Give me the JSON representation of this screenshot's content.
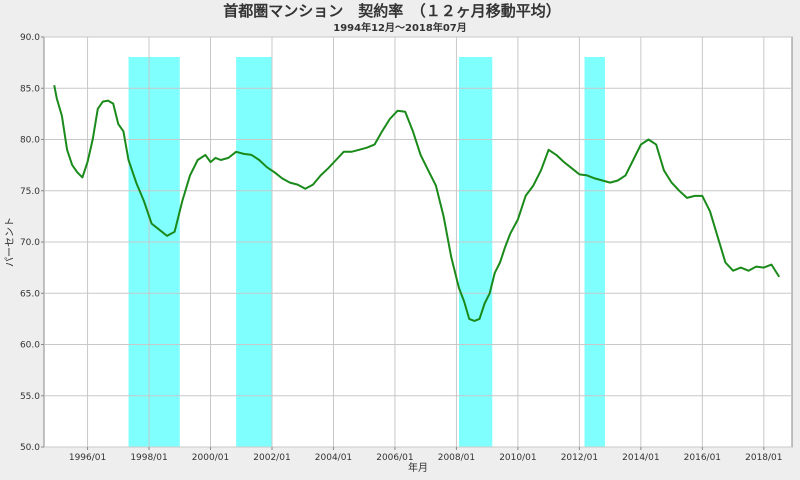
{
  "chart_data": {
    "type": "line",
    "title": "首都圏マンション　契約率　（１２ヶ月移動平均）",
    "subtitle": "1994年12月～2018年07月",
    "xlabel": "年月",
    "ylabel": "パーセント",
    "ylim": [
      50,
      90
    ],
    "xlim": [
      "1994/08",
      "2018/12"
    ],
    "y_ticks": [
      "50.0",
      "55.0",
      "60.0",
      "65.0",
      "70.0",
      "75.0",
      "80.0",
      "85.0",
      "90.0"
    ],
    "x_ticks": [
      "1996/01",
      "1998/01",
      "2000/01",
      "2002/01",
      "2004/01",
      "2006/01",
      "2008/01",
      "2010/01",
      "2012/01",
      "2014/01",
      "2016/01",
      "2018/01"
    ],
    "grid": true,
    "line_color": "#1a8a1a",
    "band_color": "#80ffff",
    "shaded_periods": [
      [
        "1997/05",
        "1999/01"
      ],
      [
        "2000/11",
        "2002/01"
      ],
      [
        "2008/02",
        "2009/03"
      ],
      [
        "2012/03",
        "2012/11"
      ]
    ],
    "series": [
      {
        "x": [
          "1994/12",
          "1995/01",
          "1995/03",
          "1995/05",
          "1995/07",
          "1995/09",
          "1995/11",
          "1996/01",
          "1996/03",
          "1996/05",
          "1996/07",
          "1996/09",
          "1996/11",
          "1997/01",
          "1997/03",
          "1997/05",
          "1997/08",
          "1997/11",
          "1998/02",
          "1998/05",
          "1998/08",
          "1998/11",
          "1999/02",
          "1999/05",
          "1999/08",
          "1999/11",
          "2000/01",
          "2000/03",
          "2000/05",
          "2000/08",
          "2000/11",
          "2001/02",
          "2001/05",
          "2001/08",
          "2001/11",
          "2002/02",
          "2002/05",
          "2002/08",
          "2002/11",
          "2003/02",
          "2003/05",
          "2003/08",
          "2003/11",
          "2004/02",
          "2004/05",
          "2004/08",
          "2004/11",
          "2005/02",
          "2005/05",
          "2005/08",
          "2005/11",
          "2006/02",
          "2006/05",
          "2006/08",
          "2006/11",
          "2007/02",
          "2007/05",
          "2007/08",
          "2007/11",
          "2008/02",
          "2008/04",
          "2008/06",
          "2008/08",
          "2008/10",
          "2008/12",
          "2009/02",
          "2009/04",
          "2009/06",
          "2009/08",
          "2009/10",
          "2010/01",
          "2010/04",
          "2010/07",
          "2010/10",
          "2011/01",
          "2011/04",
          "2011/07",
          "2011/10",
          "2012/01",
          "2012/04",
          "2012/07",
          "2012/10",
          "2013/01",
          "2013/04",
          "2013/07",
          "2013/10",
          "2014/01",
          "2014/04",
          "2014/07",
          "2014/10",
          "2015/01",
          "2015/04",
          "2015/07",
          "2015/10",
          "2016/01",
          "2016/04",
          "2016/07",
          "2016/10",
          "2017/01",
          "2017/04",
          "2017/07",
          "2017/10",
          "2018/01",
          "2018/04",
          "2018/07"
        ],
        "values": [
          85.3,
          84.0,
          82.3,
          79.0,
          77.5,
          76.8,
          76.3,
          77.8,
          80.0,
          83.0,
          83.7,
          83.8,
          83.5,
          81.5,
          80.8,
          78.0,
          75.8,
          74.0,
          71.8,
          71.2,
          70.6,
          71.0,
          74.0,
          76.5,
          78.0,
          78.5,
          77.8,
          78.2,
          78.0,
          78.2,
          78.8,
          78.6,
          78.5,
          78.0,
          77.3,
          76.8,
          76.2,
          75.8,
          75.6,
          75.2,
          75.6,
          76.5,
          77.2,
          78.0,
          78.8,
          78.8,
          79.0,
          79.2,
          79.5,
          80.8,
          82.0,
          82.8,
          82.7,
          80.8,
          78.5,
          77.0,
          75.5,
          72.5,
          68.5,
          65.5,
          64.2,
          62.5,
          62.3,
          62.5,
          64.0,
          65.0,
          67.0,
          68.0,
          69.5,
          70.8,
          72.2,
          74.5,
          75.5,
          77.0,
          79.0,
          78.5,
          77.8,
          77.2,
          76.6,
          76.5,
          76.2,
          76.0,
          75.8,
          76.0,
          76.5,
          78.0,
          79.5,
          80.0,
          79.5,
          77.0,
          75.8,
          75.0,
          74.3,
          74.5,
          74.5,
          73.0,
          70.5,
          68.0,
          67.2,
          67.5,
          67.2,
          67.6,
          67.5,
          67.8,
          66.6
        ]
      }
    ]
  }
}
